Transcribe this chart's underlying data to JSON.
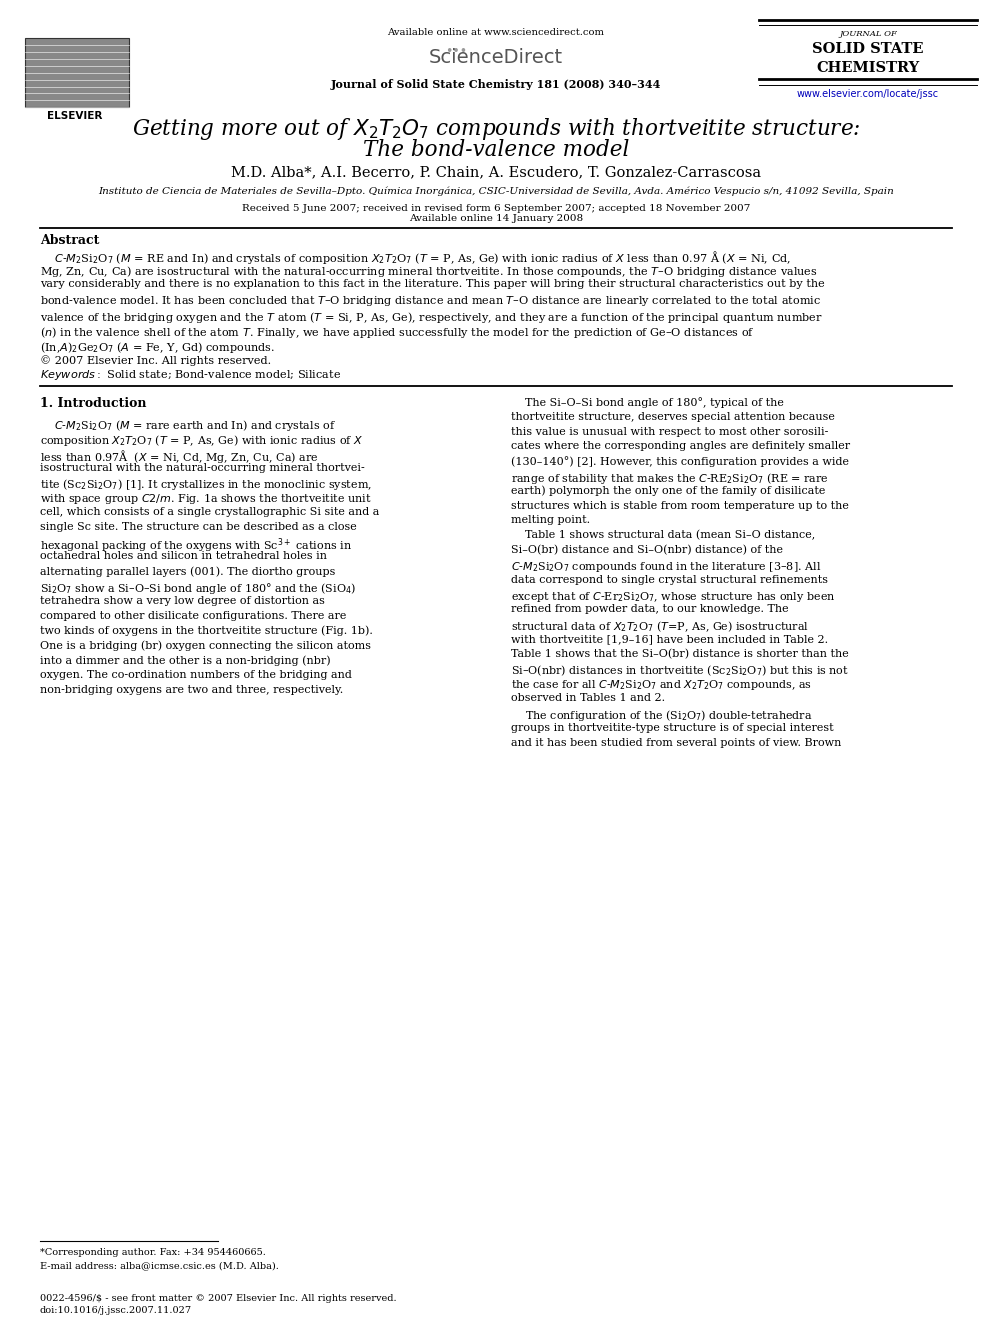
{
  "bg_color": "#ffffff",
  "page_width": 9.92,
  "page_height": 13.23,
  "header_available_online": "Available online at www.sciencedirect.com",
  "header_journal_line": "Journal of Solid State Chemistry 181 (2008) 340–344",
  "header_journal_name1": "JOURNAL OF",
  "header_journal_name2": "SOLID STATE",
  "header_journal_name3": "CHEMISTRY",
  "header_elsevier": "ELSEVIER",
  "header_website": "www.elsevier.com/locate/jssc",
  "title_line1": "Getting more out of $X_2T_2O_7$ compounds with thortveitite structure:",
  "title_line2": "The bond-valence model",
  "authors": "M.D. Alba*, A.I. Becerro, P. Chain, A. Escudero, T. Gonzalez-Carrascosa",
  "affiliation": "Instituto de Ciencia de Materiales de Sevilla–Dpto. Química Inorgánica, CSIC-Universidad de Sevilla, Avda. Américo Vespucio s/n, 41092 Sevilla, Spain",
  "received": "Received 5 June 2007; received in revised form 6 September 2007; accepted 18 November 2007",
  "available": "Available online 14 January 2008",
  "abstract_label": "Abstract",
  "abstract_lines": [
    "    $C$-$M_2$Si$_2$O$_7$ ($M$ = RE and In) and crystals of composition $X_2T_2$O$_7$ ($T$ = P, As, Ge) with ionic radius of $X$ less than 0.97 Å ($X$ = Ni, Cd,",
    "Mg, Zn, Cu, Ca) are isostructural with the natural-occurring mineral thortveitite. In those compounds, the $T$–O bridging distance values",
    "vary considerably and there is no explanation to this fact in the literature. This paper will bring their structural characteristics out by the",
    "bond-valence model. It has been concluded that $T$–O bridging distance and mean $T$–O distance are linearly correlated to the total atomic",
    "valence of the bridging oxygen and the $T$ atom ($T$ = Si, P, As, Ge), respectively, and they are a function of the principal quantum number",
    "($n$) in the valence shell of the atom $T$. Finally, we have applied successfully the model for the prediction of Ge–O distances of",
    "(In,$A$)$_2$Ge$_2$O$_7$ ($A$ = Fe, Y, Gd) compounds.",
    "© 2007 Elsevier Inc. All rights reserved."
  ],
  "keywords_text": "$\\it{Keywords:}$ Solid state; Bond-valence model; Silicate",
  "section1_heading": "1. Introduction",
  "col1_lines": [
    "    $C$-$M_2$Si$_2$O$_7$ ($M$ = rare earth and In) and crystals of",
    "composition $X_2T_2$O$_7$ ($T$ = P, As, Ge) with ionic radius of $X$",
    "less than 0.97Å  ($X$ = Ni, Cd, Mg, Zn, Cu, Ca) are",
    "isostructural with the natural-occurring mineral thortvei-",
    "tite (Sc$_2$Si$_2$O$_7$) [1]. It crystallizes in the monoclinic system,",
    "with space group $C2/m$. Fig. 1a shows the thortveitite unit",
    "cell, which consists of a single crystallographic Si site and a",
    "single Sc site. The structure can be described as a close",
    "hexagonal packing of the oxygens with Sc$^{3+}$ cations in",
    "octahedral holes and silicon in tetrahedral holes in",
    "alternating parallel layers (001). The diortho groups",
    "Si$_2$O$_7$ show a Si–O–Si bond angle of 180° and the (SiO$_4$)",
    "tetrahedra show a very low degree of distortion as",
    "compared to other disilicate configurations. There are",
    "two kinds of oxygens in the thortveitite structure (Fig. 1b).",
    "One is a bridging (br) oxygen connecting the silicon atoms",
    "into a dimmer and the other is a non-bridging (nbr)",
    "oxygen. The co-ordination numbers of the bridging and",
    "non-bridging oxygens are two and three, respectively."
  ],
  "col2_lines": [
    "    The Si–O–Si bond angle of 180°, typical of the",
    "thortveitite structure, deserves special attention because",
    "this value is unusual with respect to most other sorosili-",
    "cates where the corresponding angles are definitely smaller",
    "(130–140°) [2]. However, this configuration provides a wide",
    "range of stability that makes the $C$-RE$_2$Si$_2$O$_7$ (RE = rare",
    "earth) polymorph the only one of the family of disilicate",
    "structures which is stable from room temperature up to the",
    "melting point.",
    "    Table 1 shows structural data (mean Si–O distance,",
    "Si–O(br) distance and Si–O(nbr) distance) of the",
    "$C$-$M_2$Si$_2$O$_7$ compounds found in the literature [3–8]. All",
    "data correspond to single crystal structural refinements",
    "except that of $C$-Er$_2$Si$_2$O$_7$, whose structure has only been",
    "refined from powder data, to our knowledge. The",
    "structural data of $X_2T_2$O$_7$ ($T$=P, As, Ge) isostructural",
    "with thortveitite [1,9–16] have been included in Table 2.",
    "Table 1 shows that the Si–O(br) distance is shorter than the",
    "Si–O(nbr) distances in thortveitite (Sc$_2$Si$_2$O$_7$) but this is not",
    "the case for all $C$-$M_2$Si$_2$O$_7$ and $X_2T_2$O$_7$ compounds, as",
    "observed in Tables 1 and 2.",
    "    The configuration of the (Si$_2$O$_7$) double-tetrahedra",
    "groups in thortveitite-type structure is of special interest",
    "and it has been studied from several points of view. Brown"
  ],
  "footnote_star": "*Corresponding author. Fax: +34 954460665.",
  "footnote_email": "E-mail address: alba@icmse.csic.es (M.D. Alba).",
  "footer_line1": "0022-4596/$ - see front matter © 2007 Elsevier Inc. All rights reserved.",
  "footer_line2": "doi:10.1016/j.jssc.2007.11.027"
}
